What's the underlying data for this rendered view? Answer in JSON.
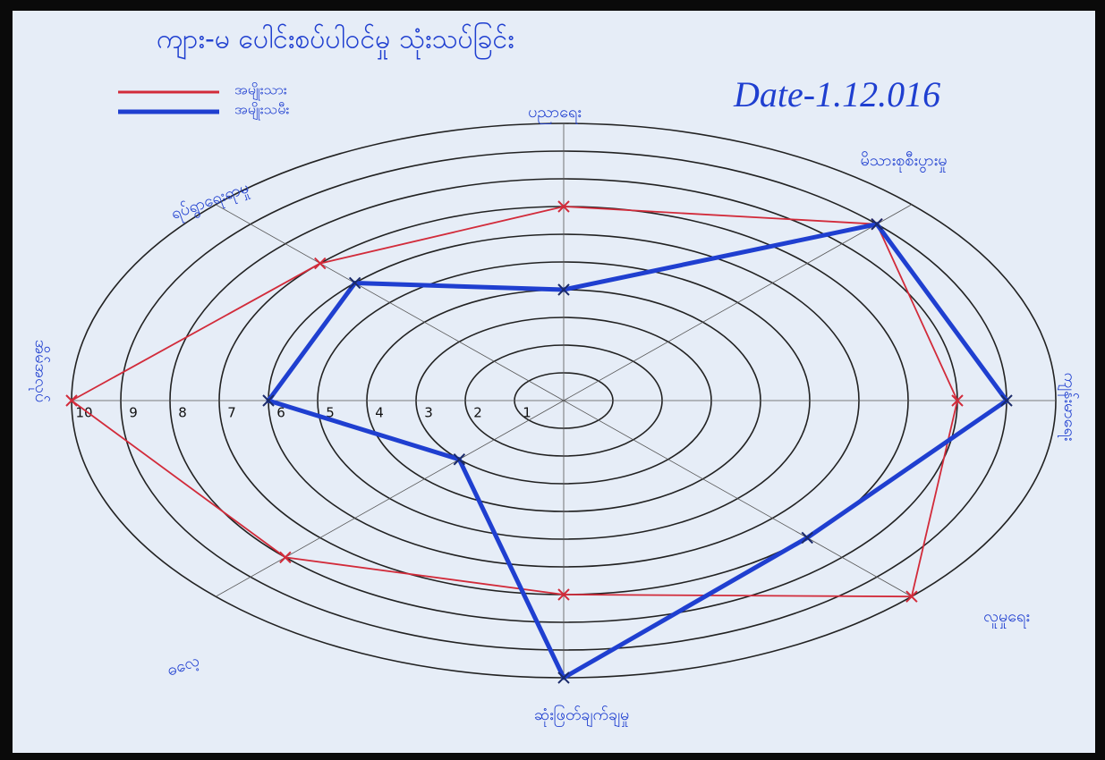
{
  "chart_data": {
    "type": "radar",
    "title": "ကျား-မ ပေါင်းစပ်ပါဝင်မှု သုံးသပ်ခြင်း",
    "annotation": "Date-1.12.016",
    "categories": [
      "ပညာရေး",
      "မိသားစုစီးပွားမှု",
      "ကျန်းမာရေး",
      "လူမှုရေး",
      "ဆုံးဖြတ်ချက်ချမှု",
      "ဓလေ့",
      "အိမ်အလုပ်",
      "ရပ်ရွာရေးရာမှု"
    ],
    "series": [
      {
        "name": "အမျိုးသား",
        "color": "#d22b3a",
        "values": [
          7,
          9,
          8,
          10,
          7,
          8,
          10,
          7
        ]
      },
      {
        "name": "အမျိုးသမီး",
        "color": "#1f3fd0",
        "values": [
          4,
          9,
          9,
          7,
          10,
          3,
          6,
          6
        ]
      }
    ],
    "rlim": [
      0,
      10
    ],
    "rticks": [
      1,
      2,
      3,
      4,
      5,
      6,
      7,
      8,
      9,
      10
    ],
    "grid": true
  }
}
